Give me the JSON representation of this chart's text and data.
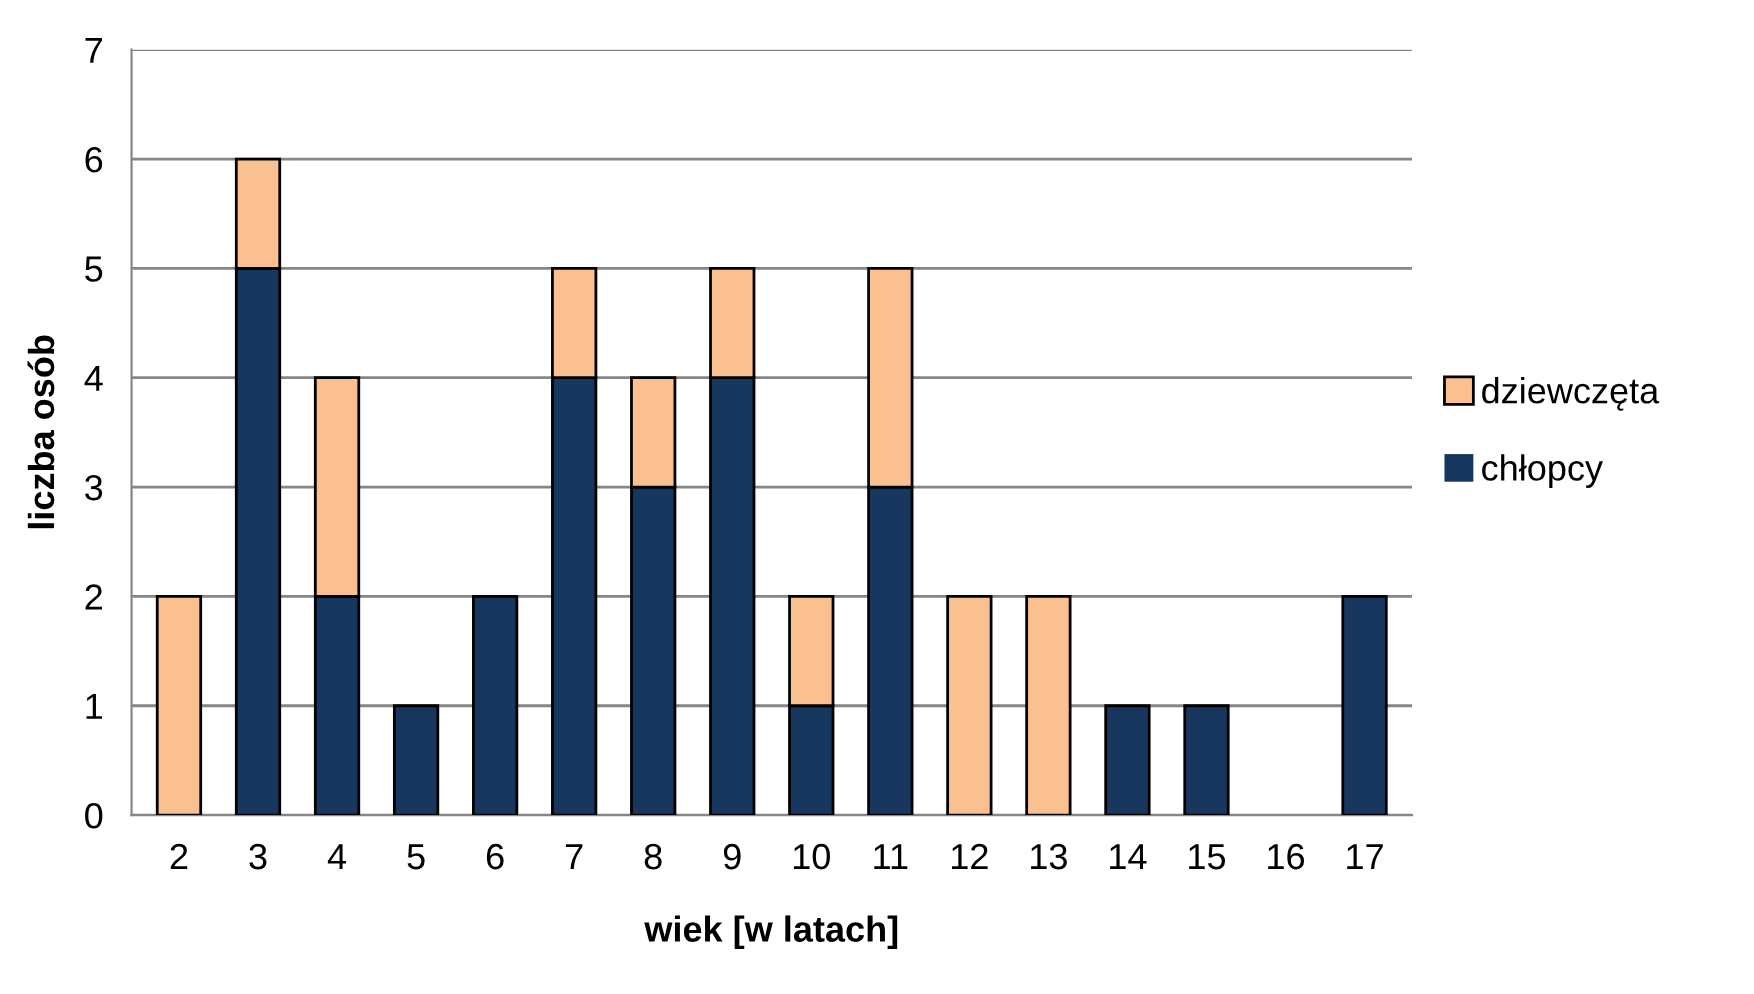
{
  "chart_data": {
    "type": "bar",
    "stacked": true,
    "xlabel": "wiek [w latach]",
    "ylabel": "liczba osób",
    "categories": [
      "2",
      "3",
      "4",
      "5",
      "6",
      "7",
      "8",
      "9",
      "10",
      "11",
      "12",
      "13",
      "14",
      "15",
      "16",
      "17"
    ],
    "series": [
      {
        "name": "chłopcy",
        "color": "#17375e",
        "values": [
          0,
          5,
          2,
          1,
          2,
          4,
          3,
          4,
          1,
          3,
          0,
          0,
          1,
          1,
          0,
          2
        ]
      },
      {
        "name": "dziewczęta",
        "color": "#fac090",
        "values": [
          2,
          1,
          2,
          0,
          0,
          1,
          1,
          1,
          1,
          2,
          2,
          2,
          0,
          0,
          0,
          0
        ]
      }
    ],
    "ylim": [
      0,
      7
    ],
    "yticks": [
      0,
      1,
      2,
      3,
      4,
      5,
      6,
      7
    ],
    "grid": "y",
    "legend": "right"
  }
}
